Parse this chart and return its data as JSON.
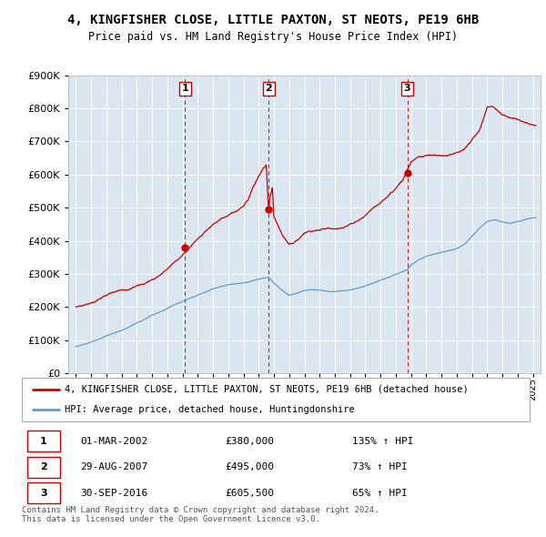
{
  "title_line1": "4, KINGFISHER CLOSE, LITTLE PAXTON, ST NEOTS, PE19 6HB",
  "title_line2": "Price paid vs. HM Land Registry's House Price Index (HPI)",
  "background_color": "#dce6f1",
  "plot_bg_color": "#dce6f1",
  "sale1": {
    "date_num": 2002.17,
    "price": 380000,
    "label": "1"
  },
  "sale2": {
    "date_num": 2007.66,
    "price": 495000,
    "label": "2"
  },
  "sale3": {
    "date_num": 2016.75,
    "price": 605500,
    "label": "3"
  },
  "legend_line1": "4, KINGFISHER CLOSE, LITTLE PAXTON, ST NEOTS, PE19 6HB (detached house)",
  "legend_line2": "HPI: Average price, detached house, Huntingdonshire",
  "table_rows": [
    [
      "1",
      "01-MAR-2002",
      "£380,000",
      "135% ↑ HPI"
    ],
    [
      "2",
      "29-AUG-2007",
      "£495,000",
      "73% ↑ HPI"
    ],
    [
      "3",
      "30-SEP-2016",
      "£605,500",
      "65% ↑ HPI"
    ]
  ],
  "footer": "Contains HM Land Registry data © Crown copyright and database right 2024.\nThis data is licensed under the Open Government Licence v3.0.",
  "ylim": [
    0,
    900000
  ],
  "xlim_start": 1994.5,
  "xlim_end": 2025.5,
  "red_line_color": "#cc0000",
  "blue_line_color": "#6699cc",
  "dashed_line_color": "#cc0000",
  "hpi_years": [
    1995,
    1995.5,
    1996,
    1996.5,
    1997,
    1997.5,
    1998,
    1998.5,
    1999,
    1999.5,
    2000,
    2000.5,
    2001,
    2001.5,
    2002,
    2002.5,
    2003,
    2003.5,
    2004,
    2004.5,
    2005,
    2005.5,
    2006,
    2006.5,
    2007,
    2007.5,
    2007.66,
    2008,
    2008.5,
    2009,
    2009.5,
    2010,
    2010.5,
    2011,
    2011.5,
    2012,
    2012.5,
    2013,
    2013.5,
    2014,
    2014.5,
    2015,
    2015.5,
    2016,
    2016.5,
    2016.75,
    2017,
    2017.5,
    2018,
    2018.5,
    2019,
    2019.5,
    2020,
    2020.5,
    2021,
    2021.5,
    2022,
    2022.5,
    2023,
    2023.5,
    2024,
    2024.5,
    2025
  ],
  "hpi_vals": [
    80000,
    87000,
    95000,
    103000,
    113000,
    120000,
    130000,
    140000,
    153000,
    163000,
    176000,
    185000,
    196000,
    208000,
    218000,
    228000,
    238000,
    248000,
    258000,
    265000,
    271000,
    275000,
    278000,
    283000,
    288000,
    292000,
    293000,
    275000,
    255000,
    240000,
    245000,
    255000,
    257000,
    256000,
    253000,
    252000,
    254000,
    257000,
    262000,
    268000,
    275000,
    283000,
    291000,
    300000,
    310000,
    315000,
    330000,
    345000,
    355000,
    362000,
    368000,
    373000,
    378000,
    390000,
    415000,
    440000,
    460000,
    465000,
    460000,
    455000,
    460000,
    465000,
    470000
  ],
  "red_years": [
    1995,
    1995.5,
    1996,
    1996.5,
    1997,
    1997.5,
    1998,
    1998.5,
    1999,
    1999.5,
    2000,
    2000.5,
    2001,
    2001.5,
    2002,
    2002.17,
    2002.5,
    2003,
    2003.5,
    2004,
    2004.5,
    2005,
    2005.5,
    2006,
    2006.3,
    2006.6,
    2007,
    2007.3,
    2007.5,
    2007.66,
    2007.7,
    2007.9,
    2008,
    2008.3,
    2008.6,
    2009,
    2009.5,
    2010,
    2010.5,
    2011,
    2011.5,
    2012,
    2012.5,
    2013,
    2013.5,
    2014,
    2014.5,
    2015,
    2015.5,
    2016,
    2016.5,
    2016.75,
    2017,
    2017.5,
    2018,
    2018.5,
    2019,
    2019.5,
    2020,
    2020.5,
    2021,
    2021.5,
    2022,
    2022.3,
    2022.6,
    2023,
    2023.5,
    2024,
    2024.3,
    2024.6,
    2025
  ],
  "red_vals": [
    200000,
    210000,
    218000,
    228000,
    240000,
    248000,
    255000,
    260000,
    268000,
    278000,
    292000,
    308000,
    328000,
    352000,
    372000,
    380000,
    395000,
    420000,
    445000,
    468000,
    482000,
    495000,
    508000,
    528000,
    548000,
    580000,
    618000,
    638000,
    648000,
    495000,
    540000,
    580000,
    490000,
    460000,
    430000,
    408000,
    420000,
    438000,
    445000,
    448000,
    452000,
    448000,
    450000,
    458000,
    468000,
    480000,
    500000,
    518000,
    535000,
    555000,
    580000,
    605500,
    628000,
    645000,
    648000,
    650000,
    648000,
    652000,
    660000,
    672000,
    698000,
    728000,
    795000,
    800000,
    790000,
    775000,
    768000,
    765000,
    760000,
    755000,
    748000
  ]
}
